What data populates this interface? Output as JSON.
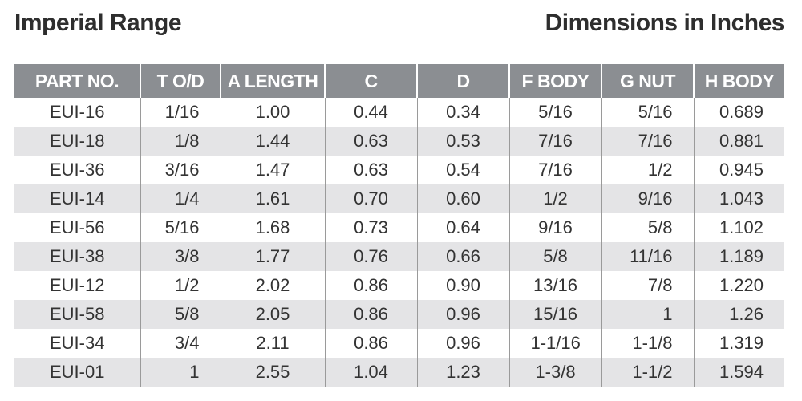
{
  "header": {
    "title": "Imperial  Range",
    "units": "Dimensions in Inches"
  },
  "table": {
    "columns": [
      "PART NO.",
      "T O/D",
      "A LENGTH",
      "C",
      "D",
      "F BODY",
      "G NUT",
      "H BODY"
    ],
    "rows": [
      [
        "EUI-16",
        "1/16",
        "1.00",
        "0.44",
        "0.34",
        "5/16",
        "5/16",
        "0.689"
      ],
      [
        "EUI-18",
        "1/8",
        "1.44",
        "0.63",
        "0.53",
        "7/16",
        "7/16",
        "0.881"
      ],
      [
        "EUI-36",
        "3/16",
        "1.47",
        "0.63",
        "0.54",
        "7/16",
        "1/2",
        "0.945"
      ],
      [
        "EUI-14",
        "1/4",
        "1.61",
        "0.70",
        "0.60",
        "1/2",
        "9/16",
        "1.043"
      ],
      [
        "EUI-56",
        "5/16",
        "1.68",
        "0.73",
        "0.64",
        "9/16",
        "5/8",
        "1.102"
      ],
      [
        "EUI-38",
        "3/8",
        "1.77",
        "0.76",
        "0.66",
        "5/8",
        "11/16",
        "1.189"
      ],
      [
        "EUI-12",
        "1/2",
        "2.02",
        "0.86",
        "0.90",
        "13/16",
        "7/8",
        "1.220"
      ],
      [
        "EUI-58",
        "5/8",
        "2.05",
        "0.86",
        "0.96",
        "15/16",
        "1",
        "1.26"
      ],
      [
        "EUI-34",
        "3/4",
        "2.11",
        "0.86",
        "0.96",
        "1-1/16",
        "1-1/8",
        "1.319"
      ],
      [
        "EUI-01",
        "1",
        "2.55",
        "1.04",
        "1.23",
        "1-3/8",
        "1-1/2",
        "1.594"
      ]
    ]
  }
}
